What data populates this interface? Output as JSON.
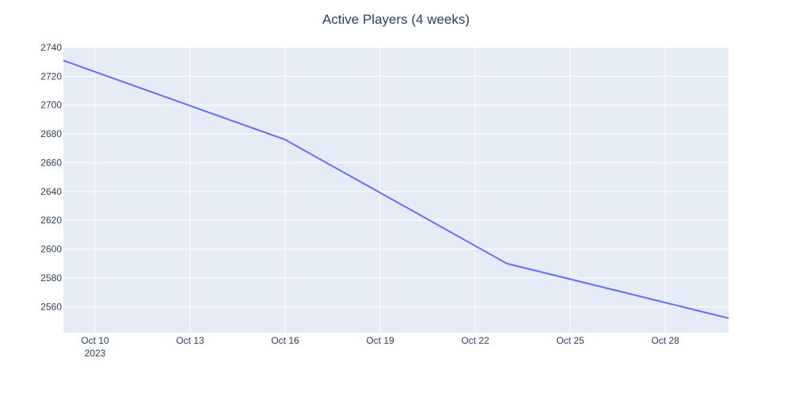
{
  "chart_data": {
    "type": "line",
    "title": "Active Players (4 weeks)",
    "xlabel": "",
    "ylabel": "",
    "x": [
      "2023-10-09",
      "2023-10-16",
      "2023-10-23",
      "2023-10-30"
    ],
    "series": [
      {
        "values": [
          2731,
          2676,
          2590,
          2552
        ],
        "color": "#636efa"
      }
    ],
    "xlim": [
      "2023-10-09",
      "2023-10-30"
    ],
    "ylim": [
      2542,
      2740
    ],
    "x_ticks": [
      {
        "date": "2023-10-10",
        "label": "Oct 10",
        "sublabel": "2023"
      },
      {
        "date": "2023-10-13",
        "label": "Oct 13",
        "sublabel": ""
      },
      {
        "date": "2023-10-16",
        "label": "Oct 16",
        "sublabel": ""
      },
      {
        "date": "2023-10-19",
        "label": "Oct 19",
        "sublabel": ""
      },
      {
        "date": "2023-10-22",
        "label": "Oct 22",
        "sublabel": ""
      },
      {
        "date": "2023-10-25",
        "label": "Oct 25",
        "sublabel": ""
      },
      {
        "date": "2023-10-28",
        "label": "Oct 28",
        "sublabel": ""
      }
    ],
    "y_ticks": [
      2560,
      2580,
      2600,
      2620,
      2640,
      2660,
      2680,
      2700,
      2720,
      2740
    ],
    "grid": true,
    "legend": false,
    "colors": {
      "plot_background": "#e5ecf6",
      "grid": "#ffffff",
      "text": "#2a3f5f"
    }
  }
}
